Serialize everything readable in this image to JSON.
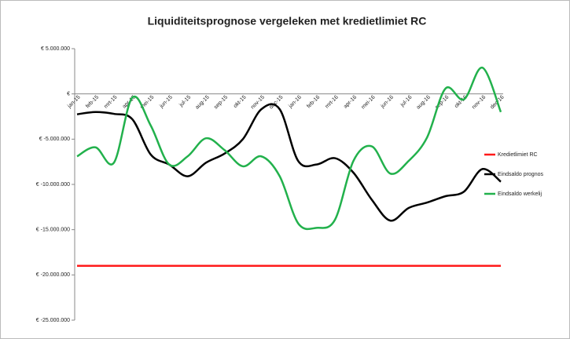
{
  "chart_data": {
    "type": "line",
    "title": "Liquiditeitsprognose vergeleken met kredietlimiet RC",
    "categories": [
      "jan-15",
      "feb-15",
      "mrt-15",
      "apr-15",
      "mei-15",
      "jun-15",
      "jul-15",
      "aug-15",
      "sep-15",
      "okt-15",
      "nov-15",
      "dec-15",
      "jan-16",
      "feb-16",
      "mrt-16",
      "apr-16",
      "mei-16",
      "jun-16",
      "jul-16",
      "aug-16",
      "sep-16",
      "okt-16",
      "nov-16",
      "dec-16"
    ],
    "series": [
      {
        "name": "Kredietlimiet RC",
        "color": "#ff1a1a",
        "values": [
          -19000000,
          -19000000,
          -19000000,
          -19000000,
          -19000000,
          -19000000,
          -19000000,
          -19000000,
          -19000000,
          -19000000,
          -19000000,
          -19000000,
          -19000000,
          -19000000,
          -19000000,
          -19000000,
          -19000000,
          -19000000,
          -19000000,
          -19000000,
          -19000000,
          -19000000,
          -19000000,
          -19000000
        ]
      },
      {
        "name": "Eindsaldo prognos",
        "color": "#000000",
        "values": [
          -2250000,
          -2000000,
          -2200000,
          -2800000,
          -6700000,
          -7800000,
          -9100000,
          -7600000,
          -6600000,
          -5000000,
          -1700000,
          -1700000,
          -7400000,
          -7800000,
          -7100000,
          -8700000,
          -11700000,
          -14000000,
          -12600000,
          -12000000,
          -11300000,
          -10800000,
          -8300000,
          -9700000
        ]
      },
      {
        "name": "Eindsaldo werkelij",
        "color": "#22b14c",
        "values": [
          -6900000,
          -5900000,
          -7600000,
          -400000,
          -3500000,
          -7800000,
          -6900000,
          -4900000,
          -6200000,
          -8000000,
          -6900000,
          -9100000,
          -14300000,
          -14800000,
          -13900000,
          -7400000,
          -5800000,
          -8800000,
          -7400000,
          -4800000,
          600000,
          -600000,
          2900000,
          -2000000
        ]
      }
    ],
    "ylim": [
      -25000000,
      5000000
    ],
    "yticks": [
      {
        "value": 5000000,
        "label": "€ 5.000.000"
      },
      {
        "value": 0,
        "label": "€"
      },
      {
        "value": -5000000,
        "label": "€ -5.000.000"
      },
      {
        "value": -10000000,
        "label": "€ -10.000.000"
      },
      {
        "value": -15000000,
        "label": "€ -15.000.000"
      },
      {
        "value": -20000000,
        "label": "€ -20.000.000"
      },
      {
        "value": -25000000,
        "label": "€ -25.000.000"
      }
    ],
    "grid": false,
    "legend": "right"
  }
}
